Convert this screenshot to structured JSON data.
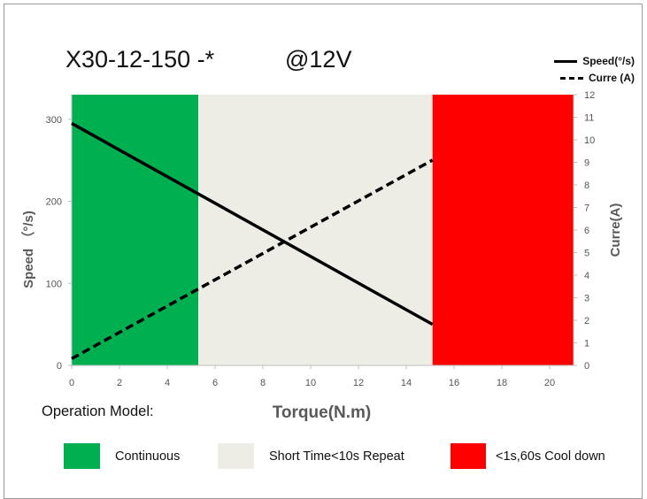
{
  "header": {
    "model": "X30-12-150 -*",
    "voltage": "@12V"
  },
  "legend": {
    "speed_label": "Speed(°/s)",
    "current_label": "Curre (A)"
  },
  "operation": {
    "title": "Operation Model:",
    "modes": [
      {
        "label": "Continuous",
        "color": "#00b050"
      },
      {
        "label": "Short Time<10s Repeat",
        "color": "#ededE6"
      },
      {
        "label": "<1s,60s Cool down",
        "color": "#ff0000"
      }
    ]
  },
  "chart_data": {
    "type": "line",
    "xlabel": "Torque(N.m)",
    "ylabel": "Speed （°/s)",
    "y2label": "Curre(A)",
    "xlim": [
      0,
      21
    ],
    "ylim": [
      0,
      330
    ],
    "y2lim": [
      0,
      12
    ],
    "xticks": [
      0,
      2,
      4,
      6,
      8,
      10,
      12,
      14,
      16,
      18,
      20
    ],
    "yticks": [
      0,
      100,
      200,
      300
    ],
    "y2ticks": [
      0,
      1,
      2,
      3,
      4,
      5,
      6,
      7,
      8,
      9,
      10,
      11,
      12
    ],
    "regions": [
      {
        "name": "Continuous",
        "x": [
          0,
          5.3
        ],
        "color": "#00b050"
      },
      {
        "name": "Short Time<10s Repeat",
        "x": [
          5.3,
          15.1
        ],
        "color": "#ededE6"
      },
      {
        "name": "<1s,60s Cool down",
        "x": [
          15.1,
          21
        ],
        "color": "#ff0000"
      }
    ],
    "series": [
      {
        "name": "Speed(°/s)",
        "axis": "left",
        "style": "solid",
        "x": [
          0,
          15.1
        ],
        "y": [
          295,
          50
        ]
      },
      {
        "name": "Curre (A)",
        "axis": "right",
        "style": "dashed",
        "x": [
          0,
          15.1
        ],
        "y": [
          0.3,
          9.1
        ]
      }
    ],
    "grid": false
  }
}
